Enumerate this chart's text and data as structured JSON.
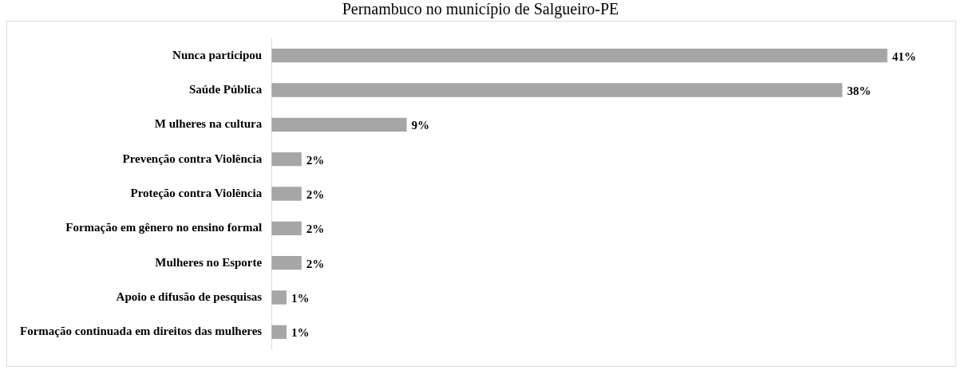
{
  "chart_data": {
    "type": "bar",
    "orientation": "horizontal",
    "title": "Pernambuco no município de Salgueiro-PE",
    "categories": [
      "Nunca participou",
      "Saúde Pública",
      "M ulheres na cultura",
      "Prevenção contra Violência",
      "Proteção contra Violência",
      "Formação em gênero no ensino formal",
      "Mulheres no Esporte",
      "Apoio e difusão de pesquisas",
      "Formação continuada em direitos das mulheres"
    ],
    "values": [
      41,
      38,
      9,
      2,
      2,
      2,
      2,
      1,
      1
    ],
    "value_labels": [
      "41%",
      "38%",
      "9%",
      "2%",
      "2%",
      "2%",
      "2%",
      "1%",
      "1%"
    ],
    "color": "#a6a6a6",
    "tick_labels": "y"
  }
}
